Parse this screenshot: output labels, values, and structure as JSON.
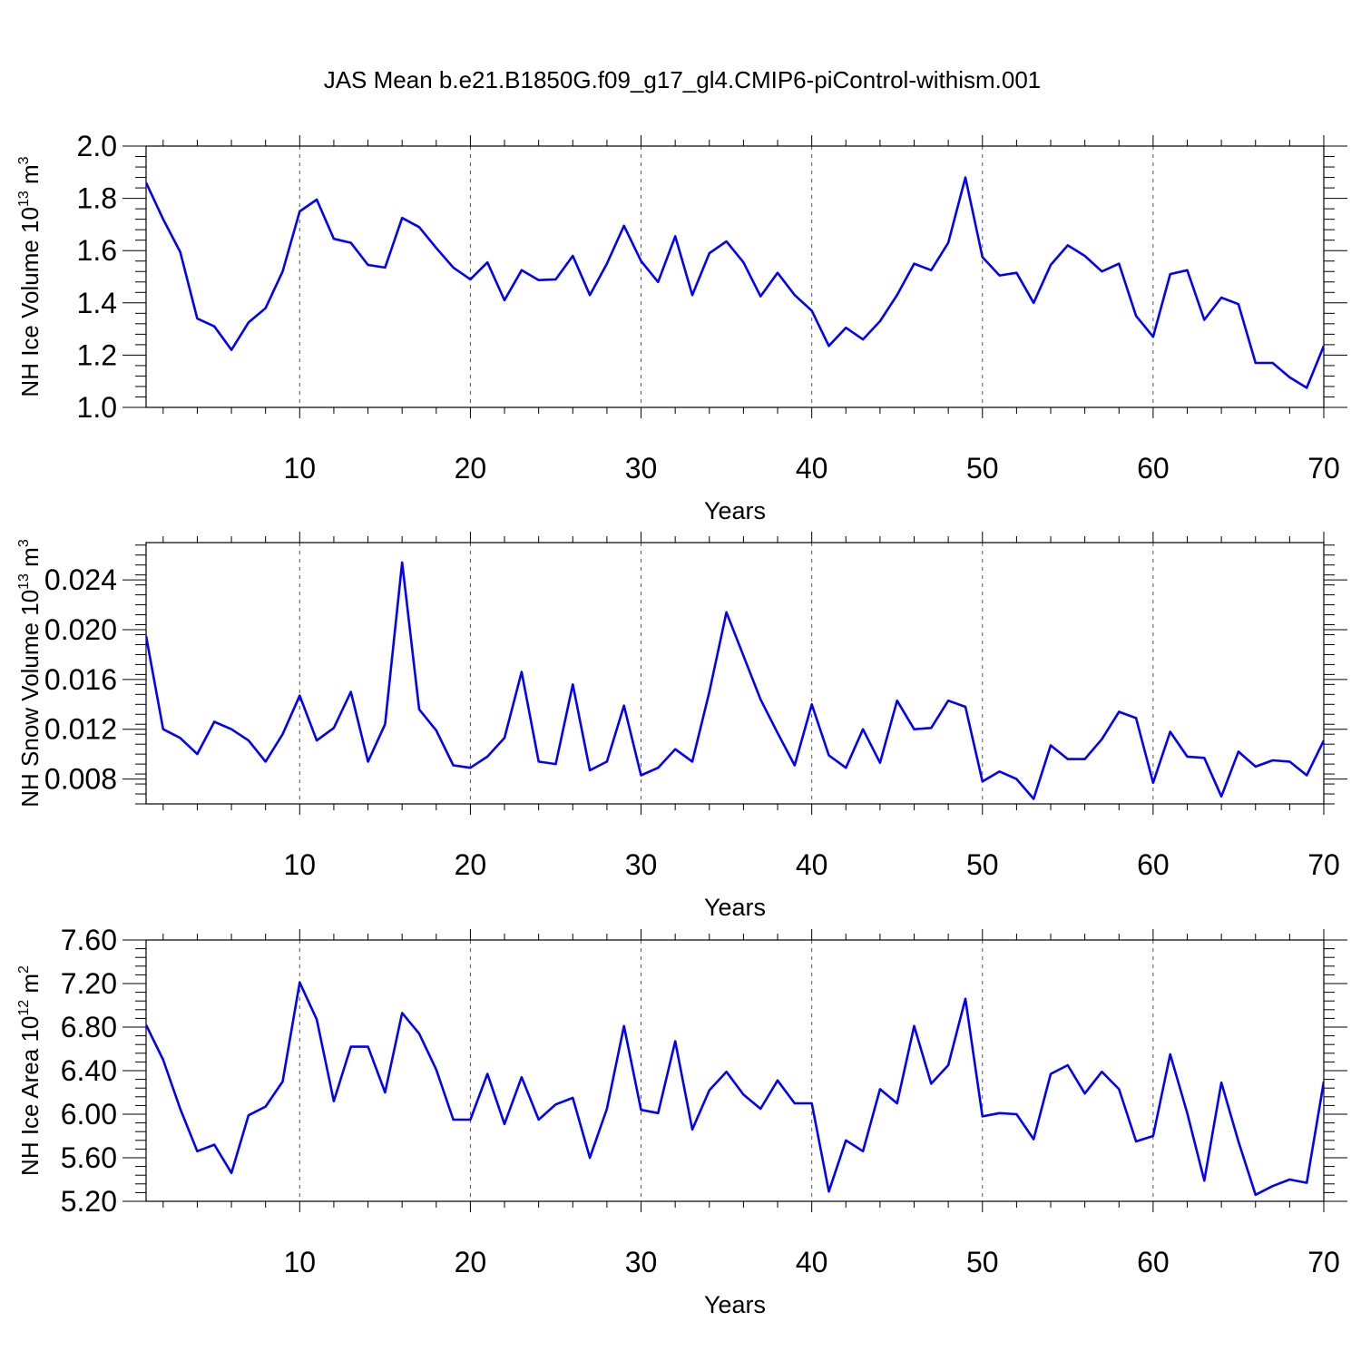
{
  "title": "JAS Mean b.e21.B1850G.f09_g17_gl4.CMIP6-piControl-withism.001",
  "colors": {
    "line": "#0000ff",
    "axis": "#000000",
    "grid": "#555555"
  },
  "chart_data": [
    {
      "type": "line",
      "ylabel": "NH Ice Volume 10",
      "ylabel_exp": "13",
      "ylabel_unit": " m",
      "ylabel_unit_exp": "3",
      "xlabel": "Years",
      "xlim": [
        1,
        70
      ],
      "ylim": [
        1.0,
        2.0
      ],
      "xticks": [
        10,
        20,
        30,
        40,
        50,
        60,
        70
      ],
      "xtick_labels": [
        "10",
        "20",
        "30",
        "40",
        "50",
        "60",
        "70"
      ],
      "yticks": [
        1.0,
        1.2,
        1.4,
        1.6,
        1.8,
        2.0
      ],
      "ytick_labels": [
        "1.0",
        "1.2",
        "1.4",
        "1.6",
        "1.8",
        "2.0"
      ],
      "y_minor_step": 0.04,
      "x_grid": [
        10,
        20,
        30,
        40,
        50,
        60
      ],
      "series": [
        {
          "name": "NH Ice Volume",
          "values": [
            1.86,
            1.72,
            1.595,
            1.34,
            1.31,
            1.22,
            1.325,
            1.38,
            1.52,
            1.75,
            1.795,
            1.645,
            1.63,
            1.545,
            1.535,
            1.725,
            1.69,
            1.61,
            1.535,
            1.49,
            1.555,
            1.41,
            1.525,
            1.487,
            1.49,
            1.58,
            1.43,
            1.55,
            1.695,
            1.56,
            1.48,
            1.655,
            1.43,
            1.59,
            1.635,
            1.555,
            1.425,
            1.515,
            1.43,
            1.37,
            1.235,
            1.305,
            1.26,
            1.33,
            1.43,
            1.55,
            1.525,
            1.63,
            1.88,
            1.575,
            1.505,
            1.515,
            1.4,
            1.545,
            1.62,
            1.58,
            1.52,
            1.55,
            1.35,
            1.27,
            1.51,
            1.525,
            1.335,
            1.42,
            1.395,
            1.17,
            1.17,
            1.115,
            1.075,
            1.235
          ]
        }
      ]
    },
    {
      "type": "line",
      "ylabel": "NH Snow Volume 10",
      "ylabel_exp": "13",
      "ylabel_unit": " m",
      "ylabel_unit_exp": "3",
      "xlabel": "Years",
      "xlim": [
        1,
        70
      ],
      "ylim": [
        0.006,
        0.027
      ],
      "xticks": [
        10,
        20,
        30,
        40,
        50,
        60,
        70
      ],
      "xtick_labels": [
        "10",
        "20",
        "30",
        "40",
        "50",
        "60",
        "70"
      ],
      "yticks": [
        0.008,
        0.012,
        0.016,
        0.02,
        0.024
      ],
      "ytick_labels": [
        "0.008",
        "0.012",
        "0.016",
        "0.020",
        "0.024"
      ],
      "y_minor_step": 0.0008,
      "x_grid": [
        10,
        20,
        30,
        40,
        50,
        60
      ],
      "series": [
        {
          "name": "NH Snow Volume",
          "values": [
            0.0195,
            0.012,
            0.0113,
            0.01,
            0.0126,
            0.012,
            0.0111,
            0.0094,
            0.0116,
            0.0147,
            0.0111,
            0.0121,
            0.015,
            0.0094,
            0.0124,
            0.0254,
            0.0136,
            0.0119,
            0.0091,
            0.0089,
            0.0098,
            0.0113,
            0.0166,
            0.0094,
            0.0092,
            0.0156,
            0.0087,
            0.0094,
            0.0139,
            0.0083,
            0.0089,
            0.0104,
            0.0094,
            0.015,
            0.0214,
            0.0179,
            0.0144,
            0.0117,
            0.0091,
            0.014,
            0.0099,
            0.0089,
            0.012,
            0.0093,
            0.0143,
            0.012,
            0.0121,
            0.0143,
            0.0138,
            0.0078,
            0.0086,
            0.008,
            0.0064,
            0.0107,
            0.0096,
            0.0096,
            0.0112,
            0.0134,
            0.0129,
            0.0077,
            0.0118,
            0.0098,
            0.0097,
            0.0066,
            0.0102,
            0.009,
            0.0095,
            0.0094,
            0.0083,
            0.0111
          ]
        }
      ]
    },
    {
      "type": "line",
      "ylabel": "NH Ice Area 10",
      "ylabel_exp": "12",
      "ylabel_unit": " m",
      "ylabel_unit_exp": "2",
      "xlabel": "Years",
      "xlim": [
        1,
        70
      ],
      "ylim": [
        5.2,
        7.6
      ],
      "xticks": [
        10,
        20,
        30,
        40,
        50,
        60,
        70
      ],
      "xtick_labels": [
        "10",
        "20",
        "30",
        "40",
        "50",
        "60",
        "70"
      ],
      "yticks": [
        5.2,
        5.6,
        6.0,
        6.4,
        6.8,
        7.2,
        7.6
      ],
      "ytick_labels": [
        "5.20",
        "5.60",
        "6.00",
        "6.40",
        "6.80",
        "7.20",
        "7.60"
      ],
      "y_minor_step": 0.08,
      "x_grid": [
        10,
        20,
        30,
        40,
        50,
        60
      ],
      "series": [
        {
          "name": "NH Ice Area",
          "values": [
            6.82,
            6.5,
            6.05,
            5.66,
            5.72,
            5.46,
            5.99,
            6.07,
            6.3,
            7.21,
            6.87,
            6.12,
            6.62,
            6.62,
            6.2,
            6.93,
            6.74,
            6.41,
            5.95,
            5.95,
            6.37,
            5.91,
            6.34,
            5.95,
            6.09,
            6.15,
            5.6,
            6.05,
            6.81,
            6.04,
            6.01,
            6.67,
            5.86,
            6.22,
            6.39,
            6.18,
            6.05,
            6.31,
            6.1,
            6.1,
            5.29,
            5.76,
            5.66,
            6.23,
            6.1,
            6.81,
            6.28,
            6.45,
            7.06,
            5.98,
            6.01,
            6.0,
            5.77,
            6.37,
            6.45,
            6.19,
            6.39,
            6.23,
            5.75,
            5.8,
            6.55,
            6.01,
            5.39,
            6.29,
            5.75,
            5.26,
            5.34,
            5.4,
            5.37,
            6.3
          ]
        }
      ]
    }
  ]
}
